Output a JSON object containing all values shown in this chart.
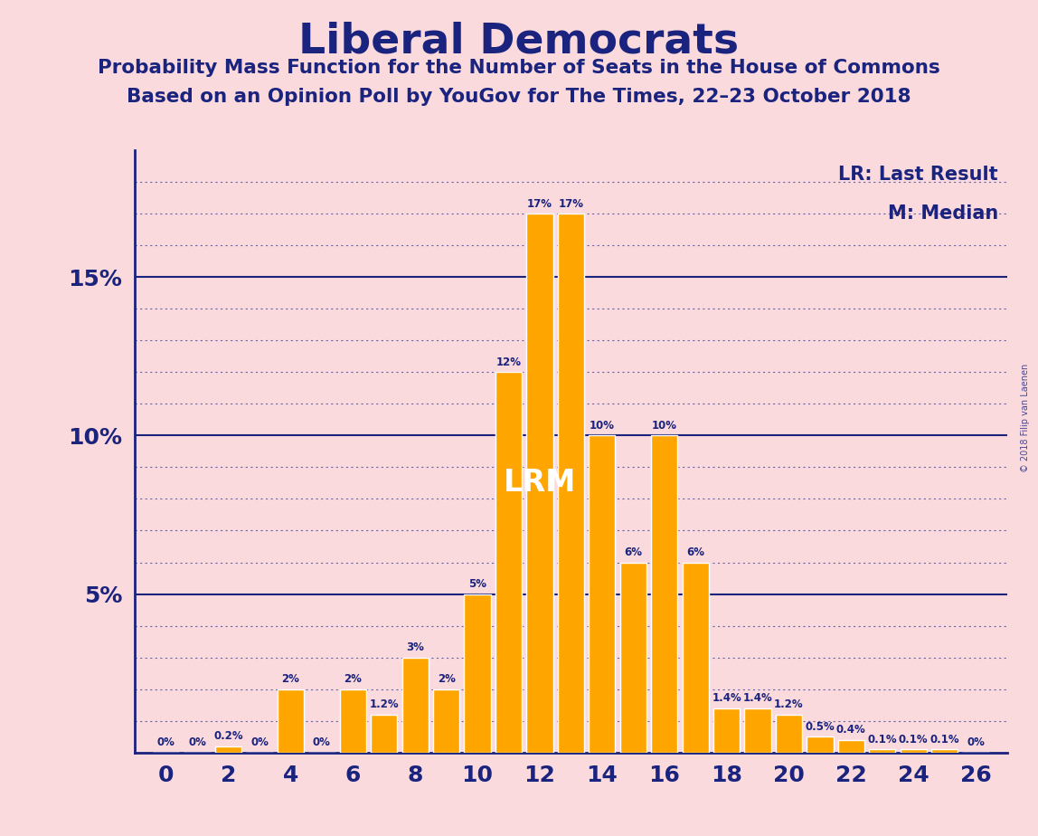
{
  "title": "Liberal Democrats",
  "subtitle1": "Probability Mass Function for the Number of Seats in the House of Commons",
  "subtitle2": "Based on an Opinion Poll by YouGov for The Times, 22–23 October 2018",
  "background_color": "#FADADD",
  "bar_color": "#FFA500",
  "bar_edge_color": "#FFFFFF",
  "title_color": "#1a237e",
  "axis_label_color": "#1a237e",
  "solid_grid_color": "#1a237e",
  "dotted_grid_color": "#6666aa",
  "annotation_color": "#1a237e",
  "legend_color": "#1a237e",
  "seats": [
    0,
    1,
    2,
    3,
    4,
    5,
    6,
    7,
    8,
    9,
    10,
    11,
    12,
    13,
    14,
    15,
    16,
    17,
    18,
    19,
    20,
    21,
    22,
    23,
    24,
    25,
    26
  ],
  "probs": [
    0.0,
    0.0,
    0.2,
    0.0,
    2.0,
    0.0,
    2.0,
    1.2,
    3.0,
    2.0,
    5.0,
    12.0,
    17.0,
    17.0,
    10.0,
    6.0,
    10.0,
    6.0,
    1.4,
    1.4,
    1.2,
    0.5,
    0.4,
    0.1,
    0.1,
    0.1,
    0.0
  ],
  "labels": [
    "0%",
    "0%",
    "0.2%",
    "0%",
    "2%",
    "0%",
    "2%",
    "1.2%",
    "3%",
    "2%",
    "5%",
    "12%",
    "17%",
    "17%",
    "10%",
    "6%",
    "10%",
    "6%",
    "1.4%",
    "1.4%",
    "1.2%",
    "0.5%",
    "0.4%",
    "0.1%",
    "0.1%",
    "0.1%",
    "0%"
  ],
  "ylim": [
    0,
    19
  ],
  "solid_yticks": [
    5,
    10,
    15
  ],
  "dotted_yticks": [
    1,
    2,
    3,
    4,
    6,
    7,
    8,
    9,
    11,
    12,
    13,
    14,
    16,
    17,
    18
  ],
  "ytick_labels_vals": [
    5,
    10,
    15
  ],
  "ytick_labels_text": [
    "5%",
    "10%",
    "15%"
  ],
  "xticks": [
    0,
    2,
    4,
    6,
    8,
    10,
    12,
    14,
    16,
    18,
    20,
    22,
    24,
    26
  ],
  "legend_lr": "LR: Last Result",
  "legend_m": "M: Median",
  "watermark": "© 2018 Filip van Laenen",
  "lrm_text": "LRM",
  "lrm_x": 12.0,
  "lrm_y": 8.5
}
